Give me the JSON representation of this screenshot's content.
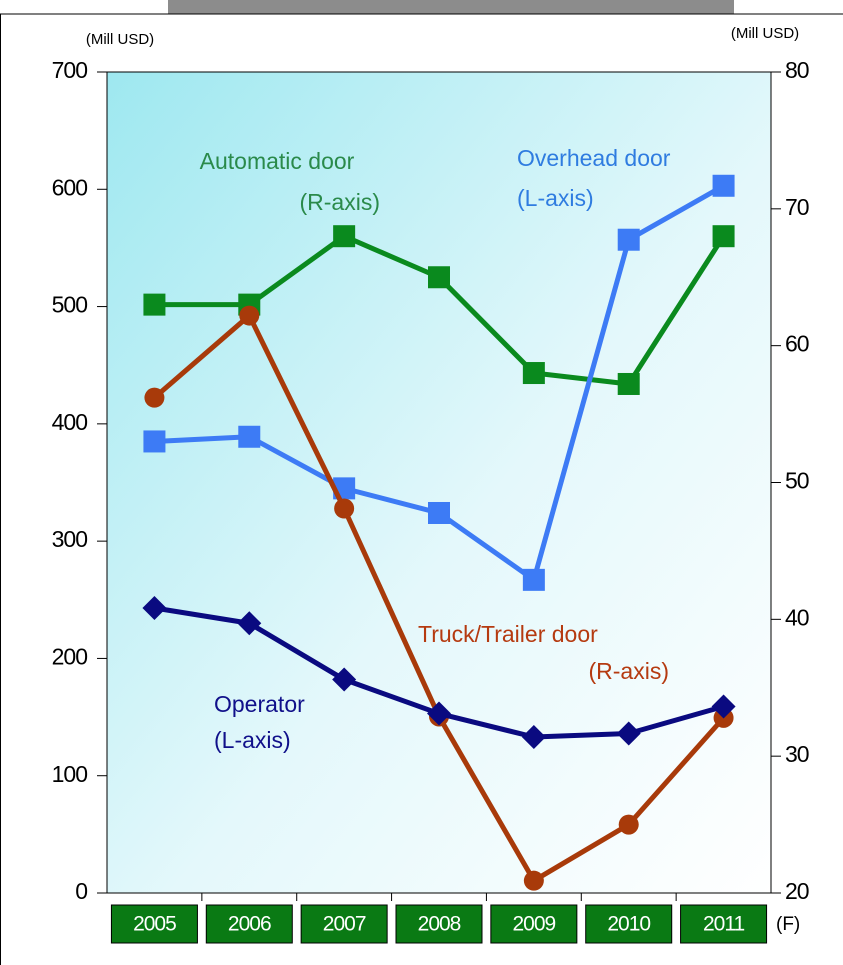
{
  "chart_data": {
    "type": "line",
    "categories": [
      "2005",
      "2006",
      "2007",
      "2008",
      "2009",
      "2010",
      "2011"
    ],
    "forecast_mark": "(F)",
    "y_unit": "(Mill USD)",
    "y2_unit": "(Mill USD)",
    "ylim": [
      0,
      700
    ],
    "yticks": [
      0,
      100,
      200,
      300,
      400,
      500,
      600,
      700
    ],
    "y2lim": [
      20,
      80
    ],
    "y2ticks": [
      20,
      30,
      40,
      50,
      60,
      70,
      80
    ],
    "series": [
      {
        "name": "Automatic door",
        "note": "(R-axis)",
        "color": "#0a8a1e",
        "text_color": "#2a8a4a",
        "marker": "square",
        "axis": "y2",
        "values": [
          63,
          63,
          68,
          65,
          58,
          57.2,
          68
        ]
      },
      {
        "name": "Overhead door",
        "note": "(L-axis)",
        "color": "#3d7bf5",
        "text_color": "#2f7ce0",
        "marker": "square",
        "values": [
          385,
          389,
          345,
          324,
          267,
          557,
          603
        ]
      },
      {
        "name": "Truck/Trailer door",
        "note": "(R-axis)",
        "color": "#a83a0a",
        "text_color": "#b53a10",
        "marker": "circle",
        "axis": "y2",
        "values": [
          56.2,
          62.2,
          48.1,
          32.9,
          20.9,
          25,
          32.8
        ]
      },
      {
        "name": "Operator",
        "note": "(L-axis)",
        "color": "#0a0a80",
        "text_color": "#10108a",
        "marker": "diamond",
        "values": [
          243,
          230,
          182,
          153,
          133,
          136,
          159
        ]
      }
    ]
  }
}
